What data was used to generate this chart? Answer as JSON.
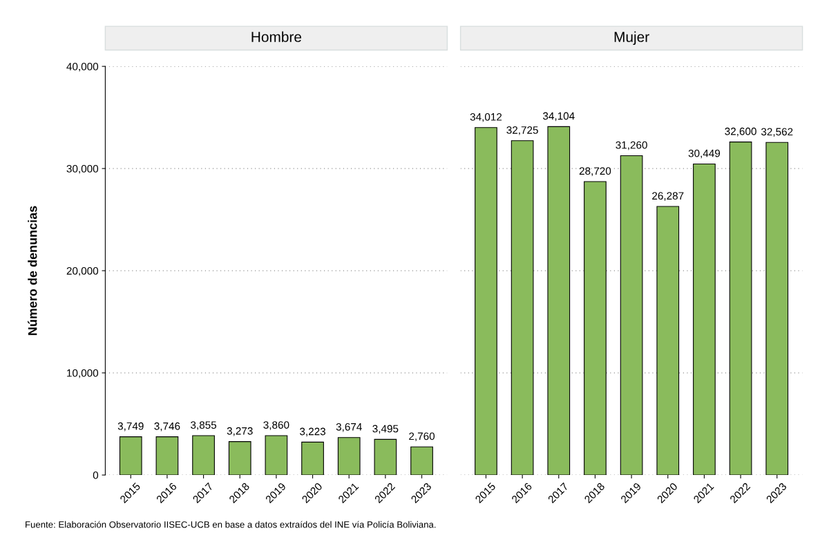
{
  "chart_data": [
    {
      "type": "bar",
      "title": "Hombre",
      "ylabel": "Número de denuncias",
      "categories": [
        "2015",
        "2016",
        "2017",
        "2018",
        "2019",
        "2020",
        "2021",
        "2022",
        "2023"
      ],
      "series": [
        {
          "color": "#8abb5c",
          "values": [
            3749,
            3746,
            3855,
            3273,
            3860,
            3223,
            3674,
            3495,
            2760
          ],
          "value_labels": [
            "3,749",
            "3,746",
            "3,855",
            "3,273",
            "3,860",
            "3,223",
            "3,674",
            "3,495",
            "2,760"
          ]
        }
      ],
      "ylim": [
        0,
        40000
      ],
      "yticks": [
        {
          "value": 0,
          "label": "0"
        },
        {
          "value": 10000,
          "label": "10,000"
        },
        {
          "value": 20000,
          "label": "20,000"
        },
        {
          "value": 30000,
          "label": "30,000"
        },
        {
          "value": 40000,
          "label": "40,000"
        }
      ],
      "grid": "y",
      "legend": false,
      "annotations": [
        "Fuente: Elaboración Observatorio IISEC-UCB en base a datos extraídos del INE vía Policía Boliviana."
      ]
    },
    {
      "type": "bar",
      "title": "Mujer",
      "categories": [
        "2015",
        "2016",
        "2017",
        "2018",
        "2019",
        "2020",
        "2021",
        "2022",
        "2023"
      ],
      "series": [
        {
          "color": "#8abb5c",
          "values": [
            34012,
            32725,
            34104,
            28720,
            31260,
            26287,
            30449,
            32600,
            32562
          ],
          "value_labels": [
            "34,012",
            "32,725",
            "34,104",
            "28,720",
            "31,260",
            "26,287",
            "30,449",
            "32,600",
            "32,562"
          ]
        }
      ],
      "ylim": [
        0,
        40000
      ],
      "grid": "y",
      "legend": false,
      "tick_labels": "x"
    }
  ]
}
